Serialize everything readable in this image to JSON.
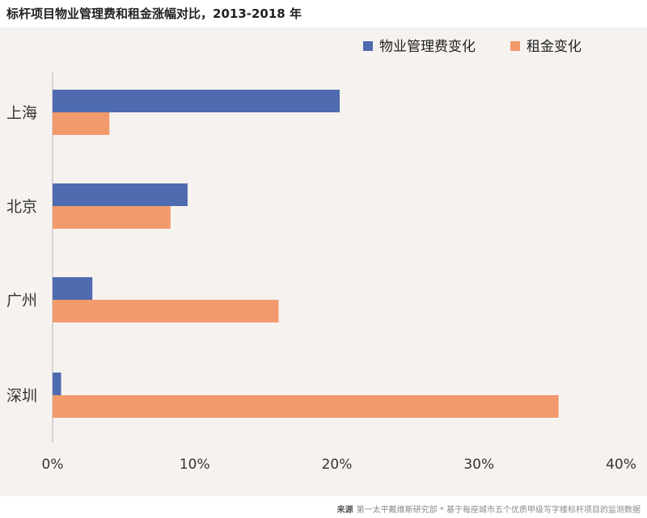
{
  "colors": {
    "background": "#f6f2ef",
    "series_fee": "#4e6bb0",
    "series_rent": "#f29a6c"
  },
  "chart_data": {
    "type": "bar",
    "orientation": "horizontal",
    "title": "标杆项目物业管理费和租金涨幅对比，2013-2018 年",
    "categories": [
      "上海",
      "北京",
      "广州",
      "深圳"
    ],
    "series": [
      {
        "name": "物业管理费变化",
        "values": [
          20.2,
          9.5,
          2.8,
          0.6
        ]
      },
      {
        "name": "租金变化",
        "values": [
          4.0,
          8.3,
          15.9,
          35.6
        ]
      }
    ],
    "xlim": [
      0,
      40
    ],
    "xticks": [
      "0%",
      "10%",
      "20%",
      "30%",
      "40%"
    ],
    "legend_position": "top-right",
    "grid": false
  },
  "footer": {
    "source_label": "来源",
    "source_text": "第一太平戴维斯研究部 * 基于每座城市五个优质甲级写字楼标杆项目的监测数据"
  }
}
